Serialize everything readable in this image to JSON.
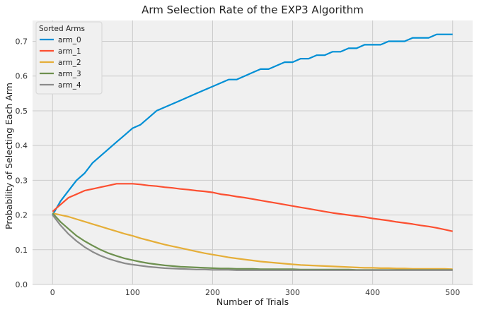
{
  "chart_data": {
    "type": "line",
    "title": "Arm Selection Rate of the EXP3 Algorithm",
    "xlabel": "Number of Trials",
    "ylabel": "Probability of Selecting Each Arm",
    "xlim": [
      -25,
      525
    ],
    "ylim": [
      0,
      0.76
    ],
    "xticks": [
      0,
      100,
      200,
      300,
      400,
      500
    ],
    "yticks": [
      0.0,
      0.1,
      0.2,
      0.3,
      0.4,
      0.5,
      0.6,
      0.7
    ],
    "grid": true,
    "background": "#f0f0f0",
    "legend": {
      "title": "Sorted Arms",
      "position": "top-left"
    },
    "x": [
      0,
      10,
      20,
      30,
      40,
      50,
      60,
      70,
      80,
      90,
      100,
      110,
      120,
      130,
      140,
      150,
      160,
      170,
      180,
      190,
      200,
      210,
      220,
      230,
      240,
      250,
      260,
      270,
      280,
      290,
      300,
      310,
      320,
      330,
      340,
      350,
      360,
      370,
      380,
      390,
      400,
      410,
      420,
      430,
      440,
      450,
      460,
      470,
      480,
      490,
      500
    ],
    "series": [
      {
        "name": "arm_0",
        "color": "#008fd5",
        "values": [
          0.2,
          0.24,
          0.27,
          0.3,
          0.32,
          0.35,
          0.37,
          0.39,
          0.41,
          0.43,
          0.45,
          0.46,
          0.48,
          0.5,
          0.51,
          0.52,
          0.53,
          0.54,
          0.55,
          0.56,
          0.57,
          0.58,
          0.59,
          0.59,
          0.6,
          0.61,
          0.62,
          0.62,
          0.63,
          0.64,
          0.64,
          0.65,
          0.65,
          0.66,
          0.66,
          0.67,
          0.67,
          0.68,
          0.68,
          0.69,
          0.69,
          0.69,
          0.7,
          0.7,
          0.7,
          0.71,
          0.71,
          0.71,
          0.72,
          0.72,
          0.72
        ]
      },
      {
        "name": "arm_1",
        "color": "#fc4f30",
        "values": [
          0.21,
          0.23,
          0.25,
          0.26,
          0.27,
          0.275,
          0.28,
          0.285,
          0.29,
          0.29,
          0.29,
          0.288,
          0.285,
          0.283,
          0.28,
          0.278,
          0.275,
          0.273,
          0.27,
          0.268,
          0.265,
          0.26,
          0.257,
          0.253,
          0.25,
          0.246,
          0.242,
          0.238,
          0.234,
          0.23,
          0.226,
          0.222,
          0.218,
          0.214,
          0.21,
          0.206,
          0.203,
          0.2,
          0.197,
          0.194,
          0.19,
          0.187,
          0.184,
          0.18,
          0.177,
          0.174,
          0.17,
          0.167,
          0.163,
          0.158,
          0.153
        ]
      },
      {
        "name": "arm_2",
        "color": "#e5ae38",
        "values": [
          0.205,
          0.2,
          0.195,
          0.188,
          0.181,
          0.174,
          0.167,
          0.16,
          0.153,
          0.146,
          0.14,
          0.133,
          0.127,
          0.121,
          0.115,
          0.11,
          0.105,
          0.1,
          0.095,
          0.09,
          0.086,
          0.082,
          0.078,
          0.075,
          0.072,
          0.069,
          0.066,
          0.064,
          0.062,
          0.06,
          0.058,
          0.056,
          0.055,
          0.054,
          0.053,
          0.052,
          0.051,
          0.05,
          0.049,
          0.048,
          0.048,
          0.047,
          0.047,
          0.046,
          0.046,
          0.045,
          0.045,
          0.045,
          0.045,
          0.045,
          0.044
        ]
      },
      {
        "name": "arm_3",
        "color": "#6d904f",
        "values": [
          0.205,
          0.18,
          0.16,
          0.14,
          0.125,
          0.112,
          0.1,
          0.09,
          0.082,
          0.075,
          0.07,
          0.065,
          0.061,
          0.058,
          0.055,
          0.053,
          0.051,
          0.05,
          0.049,
          0.048,
          0.047,
          0.046,
          0.046,
          0.045,
          0.045,
          0.045,
          0.044,
          0.044,
          0.044,
          0.044,
          0.044,
          0.043,
          0.043,
          0.043,
          0.043,
          0.043,
          0.043,
          0.043,
          0.042,
          0.042,
          0.042,
          0.042,
          0.042,
          0.042,
          0.042,
          0.042,
          0.042,
          0.042,
          0.042,
          0.042,
          0.042
        ]
      },
      {
        "name": "arm_4",
        "color": "#8b8b8b",
        "values": [
          0.2,
          0.17,
          0.145,
          0.125,
          0.108,
          0.094,
          0.083,
          0.074,
          0.067,
          0.061,
          0.057,
          0.054,
          0.051,
          0.049,
          0.047,
          0.046,
          0.045,
          0.044,
          0.043,
          0.043,
          0.042,
          0.042,
          0.042,
          0.041,
          0.041,
          0.041,
          0.041,
          0.041,
          0.041,
          0.041,
          0.041,
          0.041,
          0.041,
          0.041,
          0.041,
          0.041,
          0.041,
          0.041,
          0.041,
          0.041,
          0.041,
          0.041,
          0.041,
          0.041,
          0.041,
          0.041,
          0.041,
          0.041,
          0.041,
          0.041,
          0.041
        ]
      }
    ]
  }
}
